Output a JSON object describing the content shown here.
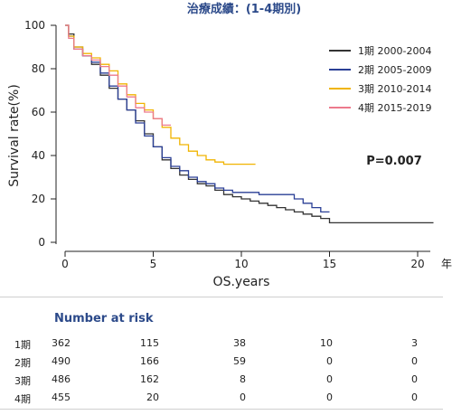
{
  "chart_data": {
    "type": "line",
    "subtype": "kaplan-meier",
    "title": "治療成績：(1-4期別)",
    "xlabel": "OS.years",
    "x_unit": "年",
    "ylabel": "Survival rate(%)",
    "xlim": [
      0,
      22
    ],
    "ylim": [
      0,
      100
    ],
    "xticks": [
      0,
      5,
      10,
      15,
      20
    ],
    "yticks": [
      0,
      20,
      40,
      60,
      80,
      100
    ],
    "grid": false,
    "legend_position": "top-right",
    "annotation": "P=0.007",
    "series": [
      {
        "name": "1期 2000-2004",
        "color": "#333333",
        "points": [
          [
            0,
            100
          ],
          [
            0.2,
            96
          ],
          [
            0.5,
            90
          ],
          [
            1,
            86
          ],
          [
            1.5,
            82
          ],
          [
            2,
            77
          ],
          [
            2.5,
            71
          ],
          [
            3,
            66
          ],
          [
            3.5,
            61
          ],
          [
            4,
            56
          ],
          [
            4.5,
            50
          ],
          [
            5,
            44
          ],
          [
            5.5,
            38
          ],
          [
            6,
            34
          ],
          [
            6.5,
            31
          ],
          [
            7,
            29
          ],
          [
            7.5,
            27
          ],
          [
            8,
            26
          ],
          [
            8.5,
            24
          ],
          [
            9,
            22
          ],
          [
            9.5,
            21
          ],
          [
            10,
            20
          ],
          [
            10.5,
            19
          ],
          [
            11,
            18
          ],
          [
            11.5,
            17
          ],
          [
            12,
            16
          ],
          [
            12.5,
            15
          ],
          [
            13,
            14
          ],
          [
            13.5,
            13
          ],
          [
            14,
            12
          ],
          [
            14.5,
            11
          ],
          [
            15,
            9
          ],
          [
            17,
            9
          ],
          [
            19,
            9
          ],
          [
            20.9,
            9
          ]
        ]
      },
      {
        "name": "2期 2005-2009",
        "color": "#2a3f96",
        "points": [
          [
            0,
            100
          ],
          [
            0.2,
            95
          ],
          [
            0.5,
            89
          ],
          [
            1,
            86
          ],
          [
            1.5,
            83
          ],
          [
            2,
            78
          ],
          [
            2.5,
            72
          ],
          [
            3,
            66
          ],
          [
            3.5,
            61
          ],
          [
            4,
            55
          ],
          [
            4.5,
            49
          ],
          [
            5,
            44
          ],
          [
            5.5,
            39
          ],
          [
            6,
            35
          ],
          [
            6.5,
            33
          ],
          [
            7,
            30
          ],
          [
            7.5,
            28
          ],
          [
            8,
            27
          ],
          [
            8.5,
            25
          ],
          [
            9,
            24
          ],
          [
            9.5,
            23
          ],
          [
            10,
            23
          ],
          [
            11,
            22
          ],
          [
            12,
            22
          ],
          [
            13,
            20
          ],
          [
            13.5,
            18
          ],
          [
            14,
            16
          ],
          [
            14.5,
            14
          ],
          [
            15,
            14
          ]
        ]
      },
      {
        "name": "3期 2010-2014",
        "color": "#f0b400",
        "points": [
          [
            0,
            100
          ],
          [
            0.2,
            95
          ],
          [
            0.5,
            90
          ],
          [
            1,
            87
          ],
          [
            1.5,
            85
          ],
          [
            2,
            82
          ],
          [
            2.5,
            79
          ],
          [
            3,
            73
          ],
          [
            3.5,
            68
          ],
          [
            4,
            64
          ],
          [
            4.5,
            61
          ],
          [
            5,
            57
          ],
          [
            5.5,
            53
          ],
          [
            6,
            48
          ],
          [
            6.5,
            45
          ],
          [
            7,
            42
          ],
          [
            7.5,
            40
          ],
          [
            8,
            38
          ],
          [
            8.5,
            37
          ],
          [
            9,
            36
          ],
          [
            10,
            36
          ],
          [
            10.8,
            36
          ]
        ]
      },
      {
        "name": "4期 2015-2019",
        "color": "#ec7a8c",
        "points": [
          [
            0,
            100
          ],
          [
            0.2,
            94
          ],
          [
            0.5,
            89
          ],
          [
            1,
            86
          ],
          [
            1.5,
            84
          ],
          [
            2,
            81
          ],
          [
            2.5,
            77
          ],
          [
            3,
            72
          ],
          [
            3.5,
            67
          ],
          [
            4,
            62
          ],
          [
            4.5,
            60
          ],
          [
            5,
            57
          ],
          [
            5.5,
            54
          ],
          [
            6,
            54
          ]
        ]
      }
    ]
  },
  "risk_table": {
    "title": "Number at risk",
    "rows": [
      {
        "label": "1期",
        "values": [
          "362",
          "115",
          "38",
          "10",
          "3"
        ]
      },
      {
        "label": "2期",
        "values": [
          "490",
          "166",
          "59",
          "0",
          "0"
        ]
      },
      {
        "label": "3期",
        "values": [
          "486",
          "162",
          "8",
          "0",
          "0"
        ]
      },
      {
        "label": "4期",
        "values": [
          "455",
          "20",
          "0",
          "0",
          "0"
        ]
      }
    ]
  }
}
